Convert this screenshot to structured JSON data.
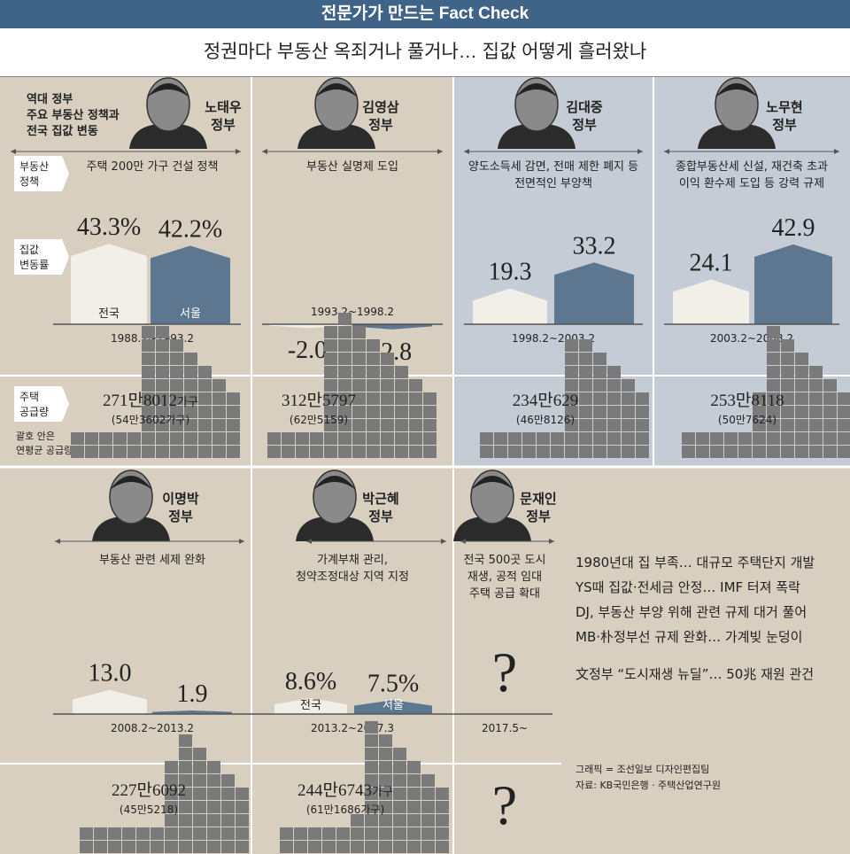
{
  "header": {
    "banner": "전문가가 만드는 Fact Check",
    "title": "정권마다 부동산 옥죄거나 풀거나… 집값 어떻게 흘러왔나"
  },
  "legend": {
    "intro": [
      "역대 정부",
      "주요 부동산 정책과",
      "전국 집값 변동"
    ],
    "policy_label": [
      "부동산",
      "정책"
    ],
    "price_label": [
      "집값",
      "변동률"
    ],
    "supply_label": [
      "주택",
      "공급량"
    ],
    "supply_note": [
      "괄호 안은",
      "연평균 공급량"
    ],
    "nation": "전국",
    "seoul": "서울"
  },
  "colors": {
    "background": "#d9cfc0",
    "highlight_panel": "#c5ccd6",
    "nation_bar": "#f2eee8",
    "seoul_bar": "#5e7790",
    "supply_block": "#7a7a7a",
    "banner": "#3f6487"
  },
  "governments": [
    {
      "name": "노태우",
      "suffix": "정부",
      "policy": [
        "주택 200만 가구 건설 정책"
      ],
      "period": "1988.2~1993.2",
      "supply_main": "271만8012",
      "supply_unit": "가구",
      "supply_avg": "(54만3602가구)"
    },
    {
      "name": "김영삼",
      "suffix": "정부",
      "policy": [
        "부동산 실명제 도입"
      ],
      "period": "1993.2~1998.2",
      "supply_main": "312만5797",
      "supply_unit": "",
      "supply_avg": "(62만5159)"
    },
    {
      "name": "김대중",
      "suffix": "정부",
      "policy": [
        "양도소득세 감면, 전매 제한 폐지 등",
        "전면적인 부양책"
      ],
      "period": "1998.2~2003.2",
      "supply_main": "234만629",
      "supply_unit": "",
      "supply_avg": "(46만8126)"
    },
    {
      "name": "노무현",
      "suffix": "정부",
      "policy": [
        "종합부동산세 신설, 재건축 초과",
        "이익 환수제 도입 등 강력 규제"
      ],
      "period": "2003.2~2008.2",
      "supply_main": "253만8118",
      "supply_unit": "",
      "supply_avg": "(50만7624)"
    },
    {
      "name": "이명박",
      "suffix": "정부",
      "policy": [
        "부동산 관련 세제 완화"
      ],
      "period": "2008.2~2013.2",
      "supply_main": "227만6092",
      "supply_unit": "",
      "supply_avg": "(45만5218)"
    },
    {
      "name": "박근혜",
      "suffix": "정부",
      "policy": [
        "가계부채 관리,",
        "청약조정대상 지역 지정"
      ],
      "period": "2013.2~2017.3",
      "supply_main": "244만6743",
      "supply_unit": "가구",
      "supply_avg": "(61만1686가구)"
    },
    {
      "name": "문재인",
      "suffix": "정부",
      "policy": [
        "전국 500곳 도시",
        "재생, 공적 임대",
        "주택 공급 확대"
      ],
      "period": "2017.5~",
      "supply_main": "",
      "supply_unit": "",
      "supply_avg": ""
    }
  ],
  "unknown_mark": "?",
  "summary": [
    "1980년대 집 부족… 대규모 주택단지 개발",
    "YS때 집값·전세금 안정… IMF 터져 폭락",
    "DJ, 부동산 부양 위해 관련 규제 대거 풀어",
    "MB·朴정부선 규제 완화… 가계빚 눈덩이",
    "文정부 “도시재생 뉴딜”… 50兆 재원 관건"
  ],
  "credits": [
    "그래픽 = 조선일보 디자인편집팀",
    "자료: KB국민은행 · 주택산업연구원"
  ],
  "chart_data": {
    "type": "bar",
    "y_unit": "%",
    "categories": [
      "노태우 정부",
      "김영삼 정부",
      "김대중 정부",
      "노무현 정부",
      "이명박 정부",
      "박근혜 정부",
      "문재인 정부"
    ],
    "series": [
      {
        "name": "전국",
        "values": [
          43.3,
          -2.0,
          19.3,
          24.1,
          13.0,
          8.6,
          null
        ],
        "labels": [
          "43.3%",
          "-2.0",
          "19.3",
          "24.1",
          "13.0",
          "8.6%",
          ""
        ]
      },
      {
        "name": "서울",
        "values": [
          42.2,
          -2.8,
          33.2,
          42.9,
          1.9,
          7.5,
          null
        ],
        "labels": [
          "42.2%",
          "-2.8",
          "33.2",
          "42.9",
          "1.9",
          "7.5%",
          ""
        ]
      }
    ],
    "supply": {
      "values": [
        271.8012,
        312.5797,
        234.0629,
        253.8118,
        227.6092,
        244.6743,
        null
      ],
      "annual": [
        54.3602,
        62.5159,
        46.8126,
        50.7624,
        45.5218,
        61.1686,
        null
      ]
    }
  }
}
